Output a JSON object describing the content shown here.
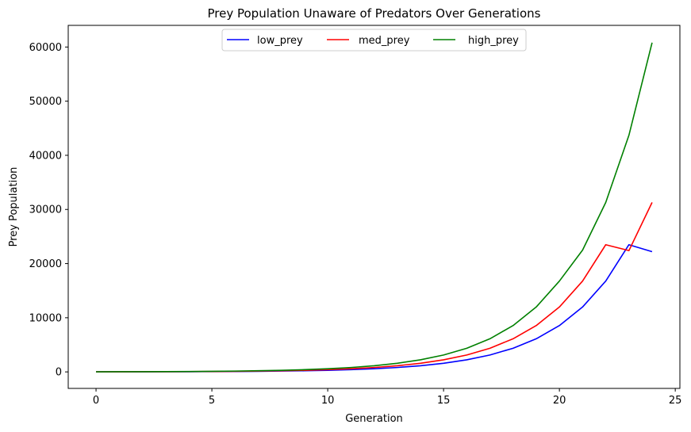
{
  "chart_data": {
    "type": "line",
    "title": "Prey Population Unaware of Predators Over Generations",
    "xlabel": "Generation",
    "ylabel": "Prey Population",
    "xlim": [
      -1.2,
      25.2
    ],
    "ylim": [
      -3050,
      64000
    ],
    "xticks": [
      0,
      5,
      10,
      15,
      20,
      25
    ],
    "xtick_labels": [
      "0",
      "5",
      "10",
      "15",
      "20",
      "25"
    ],
    "yticks": [
      0,
      10000,
      20000,
      30000,
      40000,
      50000,
      60000
    ],
    "ytick_labels": [
      "0",
      "10000",
      "20000",
      "30000",
      "40000",
      "50000",
      "60000"
    ],
    "grid": false,
    "legend_position": "top-center",
    "x": [
      0,
      1,
      2,
      3,
      4,
      5,
      6,
      7,
      8,
      9,
      10,
      11,
      12,
      13,
      14,
      15,
      16,
      17,
      18,
      19,
      20,
      21,
      22,
      23,
      24
    ],
    "series": [
      {
        "name": "low_prey",
        "color": "#0000ff",
        "values": [
          10,
          14,
          20,
          28,
          39,
          55,
          77,
          108,
          151,
          211,
          296,
          414,
          580,
          812,
          1137,
          1591,
          2228,
          3119,
          4367,
          6114,
          8559,
          11983,
          16776,
          23487,
          22200
        ]
      },
      {
        "name": "med_prey",
        "color": "#ff0000",
        "values": [
          14,
          20,
          28,
          39,
          55,
          77,
          108,
          151,
          211,
          296,
          414,
          580,
          812,
          1137,
          1591,
          2228,
          3119,
          4367,
          6114,
          8559,
          11983,
          16776,
          23487,
          22400,
          31300
        ]
      },
      {
        "name": "high_prey",
        "color": "#008000",
        "values": [
          20,
          28,
          39,
          55,
          77,
          108,
          151,
          211,
          296,
          414,
          580,
          812,
          1137,
          1591,
          2228,
          3119,
          4367,
          6114,
          8559,
          11983,
          16776,
          22500,
          31300,
          43700,
          60800
        ]
      }
    ]
  }
}
